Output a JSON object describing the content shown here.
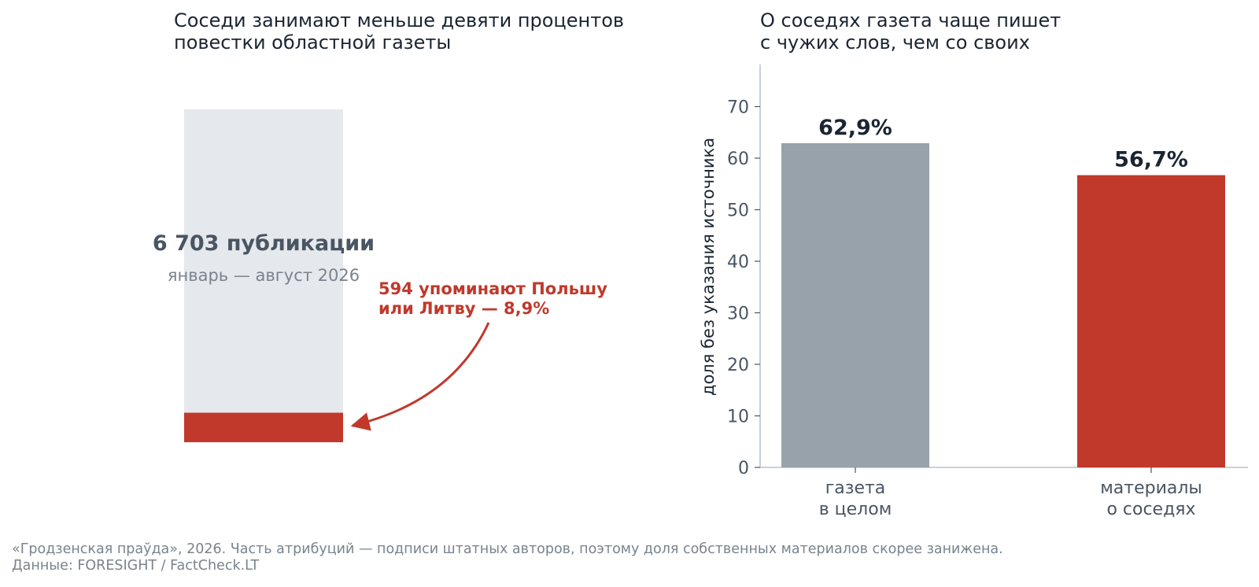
{
  "left_panel": {
    "title": "Соседи занимают меньше девяти процентов\nповестки областной газеты",
    "total_label": "6 703 публикации",
    "period_label": "январь — август 2026",
    "highlight_label": [
      "594 упоминают Польшу",
      "или Литву — 8,9%"
    ]
  },
  "right_panel": {
    "title": "О соседях газета чаще пишет\nс чужих слов, чем со своих"
  },
  "footnote": {
    "line1": "«Гродзенская праўда», 2026. Часть атрибуций — подписи штатных авторов, поэтому доля собственных материалов скорее занижена.",
    "line2": "Данные: FORESIGHT / FactCheck.LT"
  },
  "colors": {
    "total_fill": "#e5e8ec",
    "highlight": "#c0392b",
    "neutral_bar": "#97a2ab",
    "text_dark": "#1b2532",
    "text_muted": "#4a5563",
    "axis": "#b9c0c8"
  },
  "chart_data": [
    {
      "type": "bar",
      "stacked": true,
      "categories": [
        "январь — август 2026"
      ],
      "total": 6703,
      "series": [
        {
          "name": "594 упоминают Польшу или Литву — 8,9%",
          "values": [
            594
          ]
        },
        {
          "values": [
            6109
          ]
        }
      ],
      "share_percent": 8.9
    },
    {
      "type": "bar",
      "title": "О соседях газета чаще пишет с чужих слов, чем со своих",
      "categories": [
        "газета\nв целом",
        "материалы\nо соседях"
      ],
      "values": [
        62.9,
        56.7
      ],
      "data_labels": [
        "62,9%",
        "56,7%"
      ],
      "ylabel": "доля без указания источника",
      "xlabel": "",
      "ylim": [
        0,
        78
      ],
      "yticks": [
        0,
        10,
        20,
        30,
        40,
        50,
        60,
        70
      ],
      "colors": [
        "#97a2ab",
        "#c0392b"
      ],
      "grid": false
    }
  ]
}
